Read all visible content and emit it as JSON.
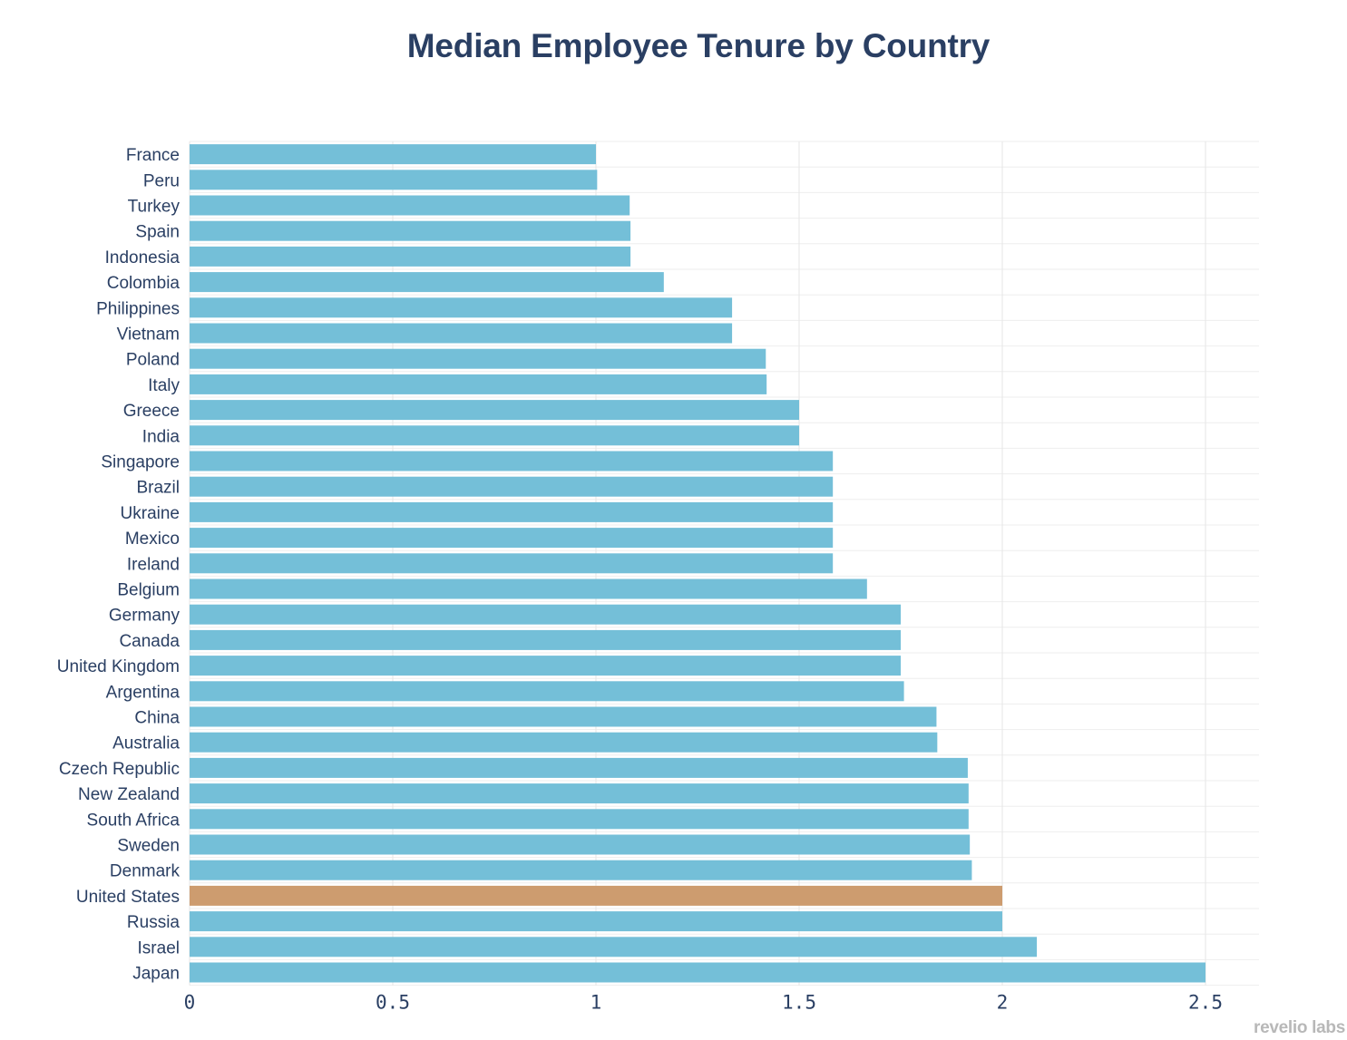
{
  "chart_data": {
    "type": "bar",
    "orientation": "horizontal",
    "title": "Median Employee Tenure by Country",
    "xlabel": "",
    "ylabel": "",
    "xlim": [
      0,
      2.6
    ],
    "x_ticks": [
      0,
      0.5,
      1,
      1.5,
      2,
      2.5
    ],
    "x_tick_labels": [
      "0",
      "0.5",
      "1",
      "1.5",
      "2",
      "2.5"
    ],
    "grid": true,
    "categories": [
      "France",
      "Peru",
      "Turkey",
      "Spain",
      "Indonesia",
      "Colombia",
      "Philippines",
      "Vietnam",
      "Poland",
      "Italy",
      "Greece",
      "India",
      "Singapore",
      "Brazil",
      "Ukraine",
      "Mexico",
      "Ireland",
      "Belgium",
      "Germany",
      "Canada",
      "United Kingdom",
      "Argentina",
      "China",
      "Australia",
      "Czech Republic",
      "New Zealand",
      "South Africa",
      "Sweden",
      "Denmark",
      "United States",
      "Russia",
      "Israel",
      "Japan"
    ],
    "values": [
      1.0,
      1.003,
      1.083,
      1.085,
      1.085,
      1.167,
      1.335,
      1.335,
      1.418,
      1.42,
      1.5,
      1.5,
      1.583,
      1.583,
      1.583,
      1.583,
      1.583,
      1.667,
      1.75,
      1.75,
      1.75,
      1.758,
      1.838,
      1.84,
      1.915,
      1.917,
      1.917,
      1.92,
      1.925,
      2.0,
      2.0,
      2.085,
      2.5
    ],
    "bar_color": "#74bfd8",
    "highlight_color": "#cd9c6f",
    "highlight_category": "United States"
  },
  "watermark": "revelio labs",
  "colors": {
    "title": "#2a3f63",
    "text": "#2a3f63",
    "grid": "#e6e6e6"
  }
}
